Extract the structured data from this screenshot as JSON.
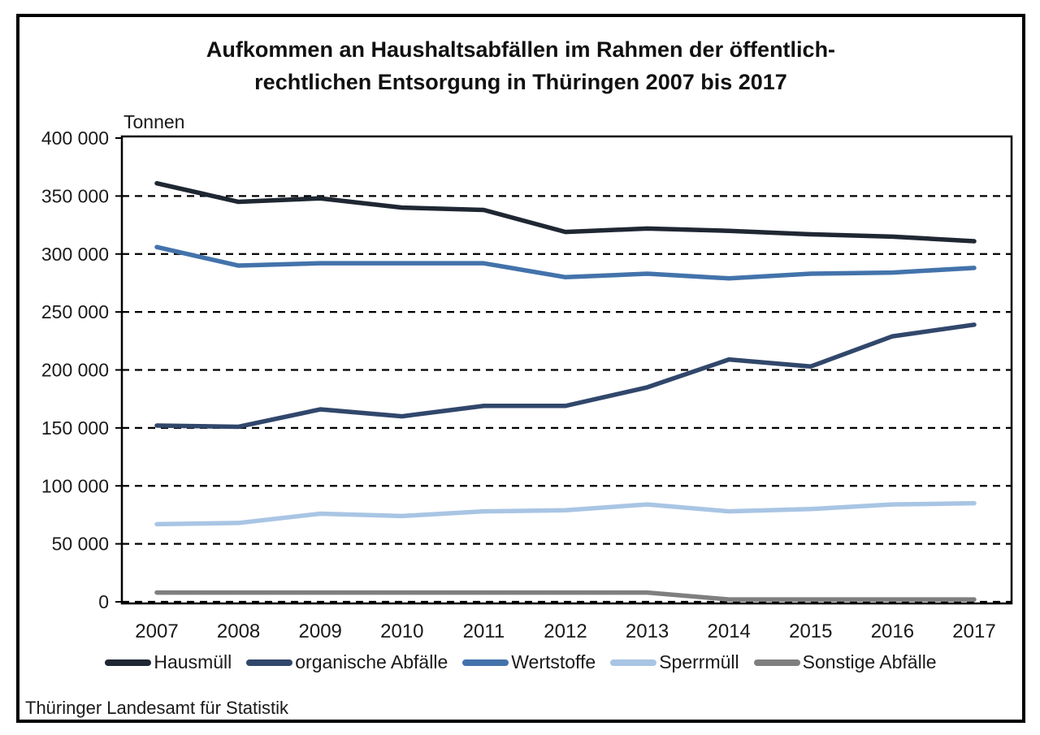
{
  "card": {
    "title_line1": "Aufkommen an Haushaltsabfällen im Rahmen der öffentlich-",
    "title_line2": "rechtlichen Entsorgung in Thüringen 2007 bis 2017",
    "source": "Thüringer Landesamt für Statistik"
  },
  "chart_data": {
    "type": "line",
    "title": "Aufkommen an Haushaltsabfällen im Rahmen der öffentlich-rechtlichen Entsorgung in Thüringen 2007 bis 2017",
    "xlabel": "",
    "ylabel": "Tonnen",
    "ylim": [
      0,
      400000
    ],
    "ytick_interval": 50000,
    "ytick_labels": [
      "400 000",
      "350 000",
      "300 000",
      "250 000",
      "200 000",
      "150 000",
      "100 000",
      "50 000",
      "0"
    ],
    "grid": "horizontal-dashed",
    "legend_position": "bottom",
    "categories": [
      "2007",
      "2008",
      "2009",
      "2010",
      "2011",
      "2012",
      "2013",
      "2014",
      "2015",
      "2016",
      "2017"
    ],
    "series": [
      {
        "name": "Hausmüll",
        "color": "#1f2733",
        "values": [
          361000,
          345000,
          348000,
          340000,
          338000,
          319000,
          322000,
          320000,
          317000,
          315000,
          311000
        ]
      },
      {
        "name": "organische Abfälle",
        "color": "#31476b",
        "values": [
          152000,
          151000,
          166000,
          160000,
          169000,
          169000,
          185000,
          209000,
          203000,
          229000,
          239000
        ]
      },
      {
        "name": "Wertstoffe",
        "color": "#4373ab",
        "values": [
          306000,
          290000,
          292000,
          292000,
          292000,
          280000,
          283000,
          279000,
          283000,
          284000,
          288000
        ]
      },
      {
        "name": "Sperrmüll",
        "color": "#a9c5e4",
        "values": [
          67000,
          68000,
          76000,
          74000,
          78000,
          79000,
          84000,
          78000,
          80000,
          84000,
          85000
        ]
      },
      {
        "name": "Sonstige Abfälle",
        "color": "#7f7f7f",
        "values": [
          8000,
          8000,
          8000,
          8000,
          8000,
          8000,
          8000,
          2000,
          2000,
          2000,
          2000
        ]
      }
    ]
  }
}
